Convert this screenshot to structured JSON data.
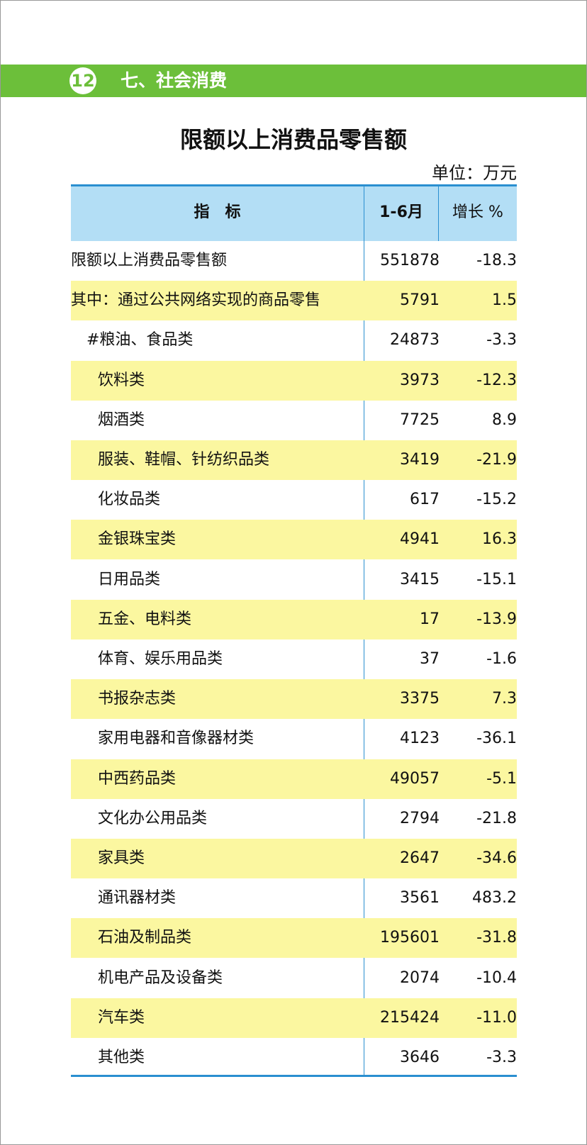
{
  "header": {
    "section_number": "12",
    "section_title": "七、社会消费"
  },
  "title": "限额以上消费品零售额",
  "unit": "单位：万元",
  "table": {
    "columns": [
      "指　标",
      "1-6月",
      "增长 %"
    ],
    "rows": [
      [
        "限额以上消费品零售额",
        "551878",
        "-18.3"
      ],
      [
        "其中：通过公共网络实现的商品零售",
        "5791",
        "1.5"
      ],
      [
        "#粮油、食品类",
        "24873",
        "-3.3"
      ],
      [
        "饮料类",
        "3973",
        "-12.3"
      ],
      [
        "烟酒类",
        "7725",
        "8.9"
      ],
      [
        "服装、鞋帽、针纺织品类",
        "3419",
        "-21.9"
      ],
      [
        "化妆品类",
        "617",
        "-15.2"
      ],
      [
        "金银珠宝类",
        "4941",
        "16.3"
      ],
      [
        "日用品类",
        "3415",
        "-15.1"
      ],
      [
        "五金、电料类",
        "17",
        "-13.9"
      ],
      [
        "体育、娱乐用品类",
        "37",
        "-1.6"
      ],
      [
        "书报杂志类",
        "3375",
        "7.3"
      ],
      [
        "家用电器和音像器材类",
        "4123",
        "-36.1"
      ],
      [
        "中西药品类",
        "49057",
        "-5.1"
      ],
      [
        "文化办公用品类",
        "2794",
        "-21.8"
      ],
      [
        "家具类",
        "2647",
        "-34.6"
      ],
      [
        "通讯器材类",
        "3561",
        "483.2"
      ],
      [
        "石油及制品类",
        "195601",
        "-31.8"
      ],
      [
        "机电产品及设备类",
        "2074",
        "-10.4"
      ],
      [
        "汽车类",
        "215424",
        "-11.0"
      ],
      [
        "其他类",
        "3646",
        "-3.3"
      ]
    ]
  }
}
